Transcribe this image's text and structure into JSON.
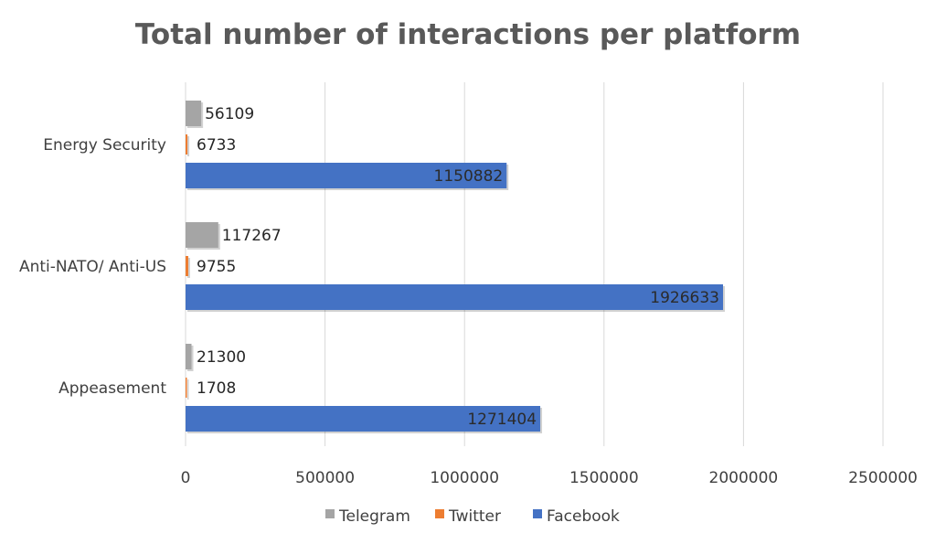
{
  "chart_data": {
    "type": "bar",
    "orientation": "horizontal",
    "title": "Total number of interactions per platform",
    "categories": [
      "Energy Security",
      "Anti-NATO/ Anti-US",
      "Appeasement"
    ],
    "series": [
      {
        "name": "Telegram",
        "color": "#a5a5a5",
        "values": [
          56109,
          117267,
          21300
        ]
      },
      {
        "name": "Twitter",
        "color": "#ed7d31",
        "values": [
          6733,
          9755,
          1708
        ]
      },
      {
        "name": "Facebook",
        "color": "#4472c4",
        "values": [
          1150882,
          1926633,
          1271404
        ]
      }
    ],
    "xlim": [
      0,
      2500000
    ],
    "xticks": [
      "0",
      "500000",
      "1000000",
      "1500000",
      "2000000",
      "2500000"
    ],
    "grid": true,
    "legend": "bottom"
  }
}
